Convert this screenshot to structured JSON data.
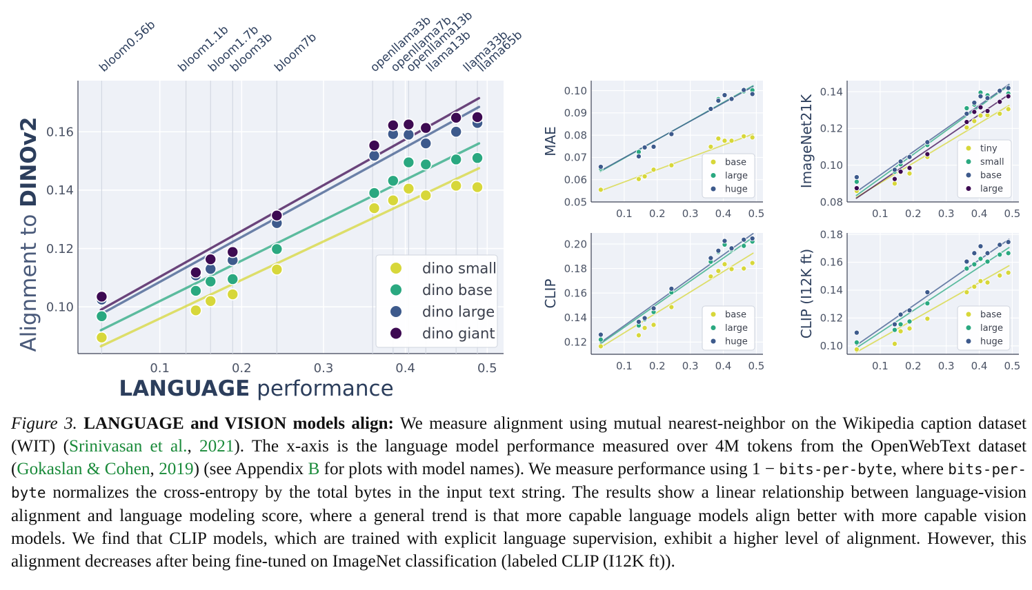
{
  "colors": {
    "tiny": "#d7d73a",
    "small": "#d7d73a",
    "base": "#2aa880",
    "large": "#3d5a8c",
    "giant": "#3d0a52",
    "m_base": "#d7d73a",
    "m_large": "#2aa880",
    "m_huge": "#3d5a8c",
    "panel_bg": "#eef1f7",
    "axis_text": "#4b5365",
    "title_text": "#2c3e5c",
    "link": "#1a8a3a"
  },
  "chart_data": [
    {
      "id": "main",
      "type": "scatter",
      "title": "",
      "xlabel_bold": "LANGUAGE",
      "xlabel_rest": " performance",
      "ylabel_pre": "Alignment to ",
      "ylabel_bold": "DINOv2",
      "xlim": [
        0.0,
        0.52
      ],
      "ylim": [
        0.084,
        0.1775
      ],
      "xticks": [
        "0.1",
        "0.2",
        "0.3",
        "0.4",
        "0.5"
      ],
      "xtick_vals": [
        0.1,
        0.2,
        0.3,
        0.4,
        0.5
      ],
      "yticks": [
        "0.10",
        "0.12",
        "0.14",
        "0.16"
      ],
      "ytick_vals": [
        0.1,
        0.12,
        0.14,
        0.16
      ],
      "x": [
        0.029,
        0.144,
        0.162,
        0.189,
        0.243,
        0.362,
        0.385,
        0.404,
        0.425,
        0.462,
        0.488
      ],
      "model_labels": [
        "bloom0.56b",
        "bloom1.1b",
        "bloom1.7b",
        "bloom3b",
        "bloom7b",
        "openllama3b",
        "openllama7b",
        "openllama13b",
        "llama13b",
        "llama33b",
        "llama65b"
      ],
      "model_x": [
        0.029,
        0.132,
        0.162,
        0.189,
        0.243,
        0.36,
        0.385,
        0.404,
        0.425,
        0.462,
        0.488
      ],
      "legend_position": "lower-right",
      "series": [
        {
          "key": "small",
          "name": "dino small",
          "values": [
            0.0895,
            0.0988,
            0.102,
            0.1043,
            0.1128,
            0.1338,
            0.1365,
            0.1405,
            0.1382,
            0.1415,
            0.141
          ],
          "fit": [
            0.0865,
            0.1475
          ]
        },
        {
          "key": "base",
          "name": "dino base",
          "values": [
            0.0968,
            0.1055,
            0.1087,
            0.1095,
            0.1198,
            0.139,
            0.1432,
            0.1495,
            0.1488,
            0.1505,
            0.151
          ],
          "fit": [
            0.092,
            0.156
          ]
        },
        {
          "key": "large",
          "name": "dino large",
          "values": [
            0.1025,
            0.1108,
            0.113,
            0.116,
            0.1287,
            0.1518,
            0.1592,
            0.159,
            0.156,
            0.16,
            0.163
          ],
          "fit": [
            0.0975,
            0.1685
          ]
        },
        {
          "key": "giant",
          "name": "dino giant",
          "values": [
            0.1035,
            0.1118,
            0.1163,
            0.1188,
            0.1313,
            0.1553,
            0.1622,
            0.1625,
            0.1613,
            0.1648,
            0.165
          ],
          "fit": [
            0.099,
            0.1715
          ]
        }
      ]
    },
    {
      "id": "mae",
      "type": "scatter",
      "ylabel": "MAE",
      "xlim": [
        0.0,
        0.52
      ],
      "ylim": [
        0.05,
        0.1045
      ],
      "xticks": [
        "0.1",
        "0.2",
        "0.3",
        "0.4",
        "0.5"
      ],
      "xtick_vals": [
        0.1,
        0.2,
        0.3,
        0.4,
        0.5
      ],
      "yticks": [
        "0.05",
        "0.06",
        "0.07",
        "0.08",
        "0.09",
        "0.10"
      ],
      "ytick_vals": [
        0.05,
        0.06,
        0.07,
        0.08,
        0.09,
        0.1
      ],
      "x": [
        0.029,
        0.144,
        0.162,
        0.189,
        0.243,
        0.362,
        0.385,
        0.404,
        0.425,
        0.462,
        0.488
      ],
      "legend_position": "lower-right",
      "series": [
        {
          "key": "m_base",
          "name": "base",
          "values": [
            0.0555,
            0.0603,
            0.0615,
            0.0645,
            0.0665,
            0.0748,
            0.0785,
            0.0775,
            0.0775,
            0.0795,
            0.079
          ],
          "fit": [
            0.055,
            0.0805
          ]
        },
        {
          "key": "m_large",
          "name": "large",
          "values": [
            0.065,
            0.0725,
            0.0745,
            0.0748,
            0.0805,
            0.092,
            0.0962,
            0.0978,
            0.0965,
            0.0997,
            0.1002
          ],
          "fit": [
            0.0637,
            0.1022
          ]
        },
        {
          "key": "m_huge",
          "name": "huge",
          "values": [
            0.0658,
            0.0705,
            0.0745,
            0.0748,
            0.0805,
            0.0918,
            0.0955,
            0.098,
            0.0963,
            0.1003,
            0.0985
          ],
          "fit": [
            0.064,
            0.1018
          ]
        }
      ]
    },
    {
      "id": "in21k",
      "type": "scatter",
      "ylabel": "ImageNet21K",
      "xlim": [
        0.0,
        0.52
      ],
      "ylim": [
        0.08,
        0.146
      ],
      "xticks": [
        "0.1",
        "0.2",
        "0.3",
        "0.4",
        "0.5"
      ],
      "xtick_vals": [
        0.1,
        0.2,
        0.3,
        0.4,
        0.5
      ],
      "yticks": [
        "0.08",
        "0.10",
        "0.12",
        "0.14"
      ],
      "ytick_vals": [
        0.08,
        0.1,
        0.12,
        0.14
      ],
      "x": [
        0.029,
        0.144,
        0.162,
        0.189,
        0.243,
        0.362,
        0.385,
        0.404,
        0.425,
        0.462,
        0.488
      ],
      "legend_position": "lower-right",
      "series": [
        {
          "key": "tiny",
          "name": "tiny",
          "values": [
            0.086,
            0.09,
            0.096,
            0.0955,
            0.1045,
            0.1205,
            0.124,
            0.127,
            0.1272,
            0.128,
            0.1305
          ],
          "fit": [
            0.0825,
            0.1325
          ]
        },
        {
          "key": "base",
          "name": "small",
          "values": [
            0.091,
            0.0965,
            0.1005,
            0.1045,
            0.111,
            0.131,
            0.133,
            0.1395,
            0.138,
            0.14,
            0.139
          ],
          "fit": [
            0.0835,
            0.1435
          ]
        },
        {
          "key": "large",
          "name": "base",
          "values": [
            0.0935,
            0.0975,
            0.102,
            0.1045,
            0.1125,
            0.128,
            0.134,
            0.1375,
            0.1365,
            0.1405,
            0.142
          ],
          "fit": [
            0.0855,
            0.144
          ]
        },
        {
          "key": "giant",
          "name": "large",
          "values": [
            0.0875,
            0.0925,
            0.0965,
            0.0985,
            0.106,
            0.1235,
            0.129,
            0.1315,
            0.1295,
            0.1345,
            0.1375
          ],
          "fit": [
            0.082,
            0.1385
          ]
        }
      ]
    },
    {
      "id": "clip",
      "type": "scatter",
      "ylabel": "CLIP",
      "xlim": [
        0.0,
        0.52
      ],
      "ylim": [
        0.11,
        0.209
      ],
      "xticks": [
        "0.1",
        "0.2",
        "0.3",
        "0.4",
        "0.5"
      ],
      "xtick_vals": [
        0.1,
        0.2,
        0.3,
        0.4,
        0.5
      ],
      "yticks": [
        "0.12",
        "0.14",
        "0.16",
        "0.18",
        "0.20"
      ],
      "ytick_vals": [
        0.12,
        0.14,
        0.16,
        0.18,
        0.2
      ],
      "x": [
        0.029,
        0.144,
        0.162,
        0.189,
        0.243,
        0.362,
        0.385,
        0.404,
        0.425,
        0.462,
        0.488
      ],
      "legend_position": "lower-right",
      "series": [
        {
          "key": "m_base",
          "name": "base",
          "values": [
            0.1165,
            0.1255,
            0.1315,
            0.134,
            0.1485,
            0.1735,
            0.178,
            0.1835,
            0.1795,
            0.18,
            0.1845
          ],
          "fit": [
            0.1155,
            0.1925
          ]
        },
        {
          "key": "m_large",
          "name": "large",
          "values": [
            0.122,
            0.1335,
            0.1385,
            0.1445,
            0.1605,
            0.1855,
            0.1935,
            0.1995,
            0.1955,
            0.1985,
            0.202
          ],
          "fit": [
            0.1185,
            0.2055
          ]
        },
        {
          "key": "m_huge",
          "name": "huge",
          "values": [
            0.126,
            0.1365,
            0.1395,
            0.1475,
            0.1635,
            0.1885,
            0.1945,
            0.2025,
            0.1965,
            0.2035,
            0.2045
          ],
          "fit": [
            0.1195,
            0.2085
          ]
        }
      ]
    },
    {
      "id": "clip_ft",
      "type": "scatter",
      "ylabel": "CLIP (I12K ft)",
      "xlim": [
        0.0,
        0.52
      ],
      "ylim": [
        0.094,
        0.181
      ],
      "xticks": [
        "0.1",
        "0.2",
        "0.3",
        "0.4",
        "0.5"
      ],
      "xtick_vals": [
        0.1,
        0.2,
        0.3,
        0.4,
        0.5
      ],
      "yticks": [
        "0.10",
        "0.12",
        "0.14",
        "0.16",
        "0.18"
      ],
      "ytick_vals": [
        0.1,
        0.12,
        0.14,
        0.16,
        0.18
      ],
      "x": [
        0.029,
        0.144,
        0.162,
        0.189,
        0.243,
        0.362,
        0.385,
        0.404,
        0.425,
        0.462,
        0.488
      ],
      "legend_position": "lower-right",
      "series": [
        {
          "key": "m_base",
          "name": "base",
          "values": [
            0.0975,
            0.1015,
            0.1105,
            0.1125,
            0.1195,
            0.1385,
            0.1425,
            0.1465,
            0.1455,
            0.1505,
            0.1525
          ],
          "fit": [
            0.0955,
            0.1575
          ]
        },
        {
          "key": "m_large",
          "name": "large",
          "values": [
            0.1025,
            0.1115,
            0.1155,
            0.1175,
            0.1305,
            0.1555,
            0.1585,
            0.1625,
            0.1605,
            0.1655,
            0.1665
          ],
          "fit": [
            0.0985,
            0.1705
          ]
        },
        {
          "key": "m_huge",
          "name": "huge",
          "values": [
            0.1095,
            0.1155,
            0.1225,
            0.1255,
            0.1385,
            0.1605,
            0.1665,
            0.1715,
            0.1665,
            0.1725,
            0.1745
          ],
          "fit": [
            0.1005,
            0.1765
          ]
        }
      ]
    }
  ],
  "caption": {
    "fig_label": "Figure 3.",
    "bold_title": "LANGUAGE and VISION models align:",
    "t1": " We measure alignment using mutual nearest-neighbor on the Wikipedia caption dataset (WIT) (",
    "ref1_author": "Srinivasan et al.",
    "sep1": ", ",
    "ref1_year": "2021",
    "t2": "). The x-axis is the language model performance measured over 4M tokens from the OpenWebText dataset (",
    "ref2_author": "Gokaslan & Cohen",
    "sep2": ", ",
    "ref2_year": "2019",
    "t3": ") (see Appendix ",
    "appendix": "B",
    "t4": " for plots with model names). We measure performance using 1 − ",
    "code1": "bits-per-byte",
    "t5": ", where ",
    "code2": "bits-per-byte",
    "t6": " normalizes the cross-entropy by the total bytes in the input text string. The results show a linear relationship between language-vision alignment and language modeling score, where a general trend is that more capable language models align better with more capable vision models. We find that CLIP models, which are trained with explicit language supervision, exhibit a higher level of alignment. However, this alignment decreases after being fine-tuned on ImageNet classification (labeled CLIP (I12K ft))."
  }
}
